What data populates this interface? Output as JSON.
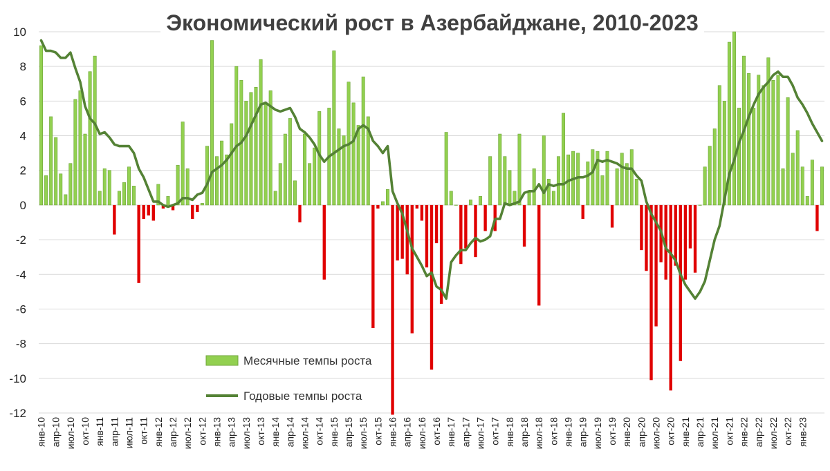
{
  "chart_data": {
    "type": "bar",
    "title": "Экономический рост в Азербайджане, 2010-2023",
    "ylim": [
      -12,
      10
    ],
    "yticks": [
      -12,
      -10,
      -8,
      -6,
      -4,
      -2,
      0,
      2,
      4,
      6,
      8,
      10
    ],
    "grid": true,
    "legend_placement": "bottom-left",
    "colors": {
      "positive": "#92d050",
      "negative": "#e00000",
      "line": "#548235"
    },
    "x_tick_labels": [
      "янв-10",
      "апр-10",
      "июл-10",
      "окт-10",
      "янв-11",
      "апр-11",
      "июл-11",
      "окт-11",
      "янв-12",
      "апр-12",
      "июл-12",
      "окт-12",
      "янв-13",
      "апр-13",
      "июл-13",
      "окт-13",
      "янв-14",
      "апр-14",
      "июл-14",
      "окт-14",
      "янв-15",
      "апр-15",
      "июл-15",
      "окт-15",
      "янв-16",
      "апр-16",
      "июл-16",
      "окт-16",
      "янв-17",
      "апр-17",
      "июл-17",
      "окт-17",
      "янв-18",
      "апр-18",
      "июл-18",
      "окт-18",
      "янв-19",
      "апр-19",
      "июл-19",
      "окт-19",
      "янв-20",
      "апр-20",
      "июл-20",
      "окт-20",
      "янв-21",
      "апр-21",
      "июл-21",
      "окт-21",
      "янв-22",
      "апр-22",
      "июл-22",
      "окт-22",
      "янв-23"
    ],
    "series": [
      {
        "name": "Месячные темпы роста",
        "type": "bar",
        "values": [
          9.2,
          1.7,
          5.1,
          3.9,
          1.8,
          0.6,
          2.4,
          6.1,
          6.6,
          4.1,
          7.7,
          8.6,
          0.8,
          2.1,
          2.0,
          -1.7,
          0.8,
          1.3,
          2.2,
          1.1,
          -4.5,
          -0.8,
          -0.6,
          -0.9,
          1.2,
          -0.2,
          0.5,
          -0.3,
          2.3,
          4.8,
          2.1,
          -0.8,
          -0.4,
          0.1,
          3.4,
          9.5,
          2.8,
          3.7,
          2.9,
          4.7,
          8.0,
          7.2,
          6.0,
          6.5,
          6.8,
          8.4,
          5.8,
          6.6,
          0.8,
          2.4,
          4.1,
          5.0,
          1.4,
          -1.0,
          4.1,
          2.4,
          3.3,
          5.4,
          -4.3,
          5.6,
          8.9,
          4.4,
          4.0,
          7.1,
          5.9,
          4.6,
          7.4,
          5.1,
          -7.1,
          -0.2,
          0.2,
          0.9,
          -12.1,
          -3.2,
          -3.1,
          -4.0,
          -7.4,
          -0.2,
          -0.9,
          -3.6,
          -9.5,
          -2.2,
          -5.7,
          4.2,
          0.8,
          0.0,
          -3.4,
          -2.5,
          0.3,
          -3.0,
          0.5,
          -1.5,
          2.8,
          -1.5,
          4.1,
          2.8,
          2.0,
          0.8,
          4.1,
          -2.4,
          0.8,
          2.1,
          -5.8,
          4.0,
          1.5,
          0.8,
          2.8,
          5.3,
          2.9,
          3.1,
          3.0,
          -0.8,
          2.5,
          3.2,
          3.1,
          1.7,
          3.1,
          -1.3,
          2.1,
          3.0,
          2.4,
          3.2,
          1.5,
          -2.6,
          -3.8,
          -10.1,
          -7.0,
          -3.3,
          -4.3,
          -10.7,
          -3.5,
          -9.0,
          -4.3,
          -2.5,
          -3.9,
          0.0,
          2.2,
          3.4,
          4.4,
          6.9,
          6.0,
          9.4,
          10.0,
          5.6,
          8.6,
          7.6,
          5.6,
          7.5,
          6.9,
          8.5,
          7.2,
          7.5,
          2.1,
          6.2,
          3.0,
          4.3,
          2.2,
          0.5,
          2.6,
          -1.5,
          2.2
        ]
      },
      {
        "name": "Годовые темпы роста",
        "type": "line",
        "values": [
          9.5,
          8.9,
          8.9,
          8.8,
          8.5,
          8.5,
          8.8,
          7.9,
          7.1,
          5.7,
          5.0,
          4.7,
          4.1,
          4.2,
          3.9,
          3.5,
          3.4,
          3.4,
          3.4,
          3.0,
          2.1,
          1.6,
          0.9,
          0.2,
          0.2,
          0.0,
          -0.1,
          0.0,
          0.1,
          0.4,
          0.4,
          0.3,
          0.6,
          0.7,
          1.2,
          1.9,
          2.1,
          2.3,
          2.6,
          3.0,
          3.4,
          3.6,
          4.0,
          4.6,
          5.2,
          5.8,
          5.9,
          5.7,
          5.5,
          5.4,
          5.5,
          5.6,
          5.1,
          4.4,
          4.2,
          3.9,
          3.5,
          2.9,
          2.5,
          2.8,
          3.0,
          3.2,
          3.4,
          3.5,
          3.7,
          4.4,
          4.6,
          4.4,
          3.7,
          3.4,
          3.0,
          3.4,
          0.8,
          0.1,
          -0.5,
          -1.5,
          -2.5,
          -3.0,
          -3.5,
          -4.1,
          -3.9,
          -4.7,
          -4.9,
          -5.4,
          -3.3,
          -2.9,
          -2.6,
          -2.6,
          -2.2,
          -1.9,
          -2.1,
          -2.0,
          -1.8,
          -0.8,
          -0.8,
          0.1,
          0.0,
          0.1,
          0.2,
          0.7,
          0.8,
          0.8,
          1.2,
          0.7,
          1.2,
          1.1,
          1.2,
          1.2,
          1.4,
          1.5,
          1.6,
          1.6,
          1.7,
          1.9,
          2.6,
          2.5,
          2.6,
          2.5,
          2.4,
          2.2,
          2.1,
          2.1,
          1.7,
          1.4,
          0.2,
          -0.5,
          -1.0,
          -1.5,
          -2.5,
          -2.8,
          -3.2,
          -4.0,
          -4.6,
          -5.0,
          -5.4,
          -5.0,
          -4.4,
          -3.2,
          -2.0,
          -1.2,
          0.3,
          1.8,
          2.6,
          3.6,
          4.3,
          5.1,
          5.8,
          6.4,
          6.8,
          7.1,
          7.5,
          7.7,
          7.4,
          7.4,
          6.9,
          6.2,
          5.8,
          5.3,
          4.7,
          4.2,
          3.7
        ]
      }
    ]
  }
}
